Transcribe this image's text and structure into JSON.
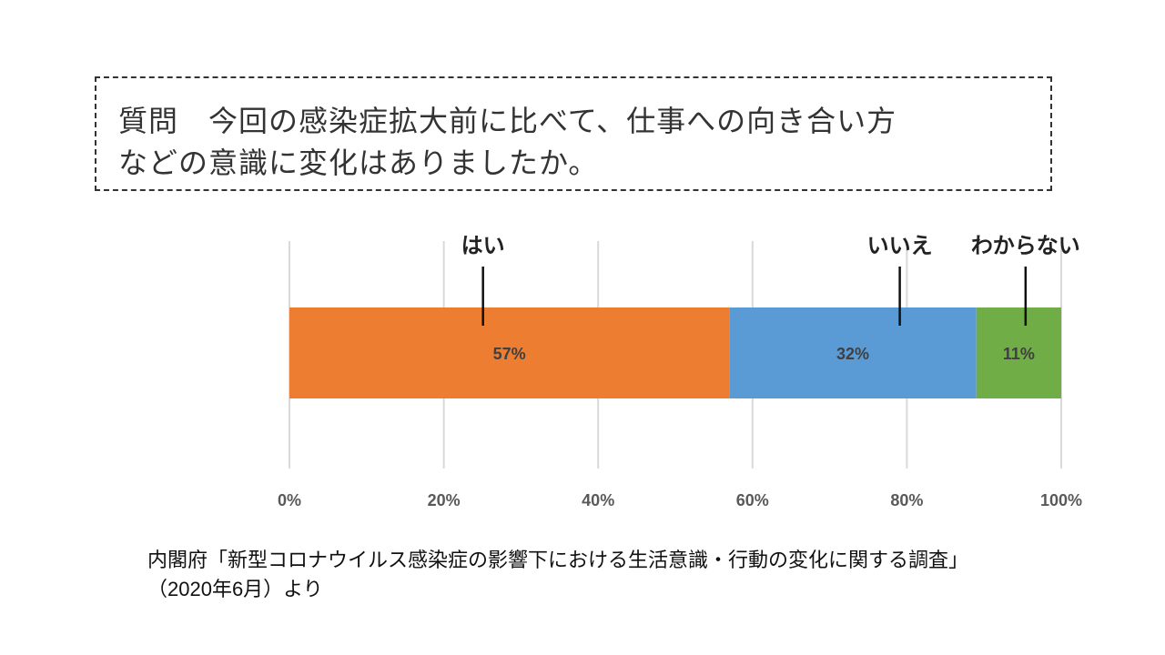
{
  "question": {
    "line1": "質問　今回の感染症拡大前に比べて、仕事への向き合い方",
    "line2": "などの意識に変化はありましたか。"
  },
  "chart_data": {
    "type": "bar",
    "orientation": "horizontal-stacked-100",
    "categories": [
      "はい",
      "いいえ",
      "わからない"
    ],
    "values": [
      57,
      32,
      11
    ],
    "data_labels": [
      "57%",
      "32%",
      "11%"
    ],
    "colors": [
      "#ED7D31",
      "#5B9BD5",
      "#70AD47"
    ],
    "xlim": [
      0,
      100
    ],
    "x_ticks": [
      "0%",
      "20%",
      "40%",
      "60%",
      "80%",
      "100%"
    ],
    "grid": true,
    "legend": "callout labels above bar"
  },
  "source": {
    "line1": "内閣府「新型コロナウイルス感染症の影響下における生活意識・行動の変化に関する調査」",
    "line2": "（2020年6月）より"
  }
}
